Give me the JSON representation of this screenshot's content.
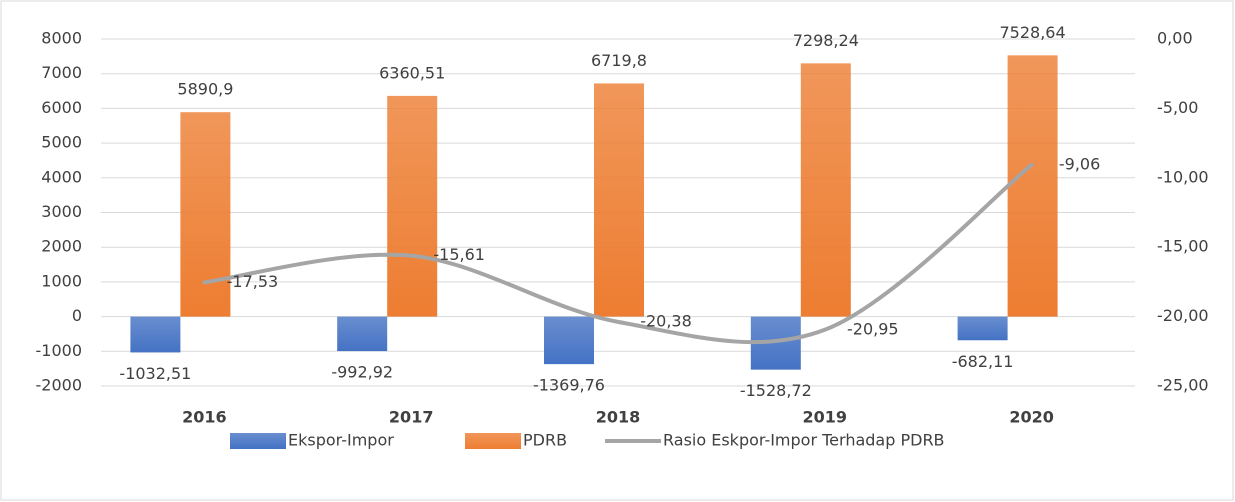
{
  "chart_data": {
    "type": "bar-line",
    "categories": [
      "2016",
      "2017",
      "2018",
      "2019",
      "2020"
    ],
    "series": [
      {
        "name": "Ekspor-Impor",
        "type": "bar",
        "color": "#4472c4",
        "values": [
          -1032.51,
          -992.92,
          -1369.76,
          -1528.72,
          -682.11
        ],
        "value_labels": [
          "-1032,51",
          "-992,92",
          "-1369,76",
          "-1528,72",
          "-682,11"
        ]
      },
      {
        "name": "PDRB",
        "type": "bar",
        "color": "#ed7d31",
        "values": [
          5890.9,
          6360.51,
          6719.8,
          7298.24,
          7528.64
        ],
        "value_labels": [
          "5890,9",
          "6360,51",
          "6719,8",
          "7298,24",
          "7528,64"
        ]
      },
      {
        "name": "Rasio Eskpor-Impor Terhadap PDRB",
        "type": "line",
        "axis": "y2",
        "color": "#a5a5a5",
        "values": [
          -17.53,
          -15.61,
          -20.38,
          -20.95,
          -9.06
        ],
        "value_labels": [
          "-17,53",
          "-15,61",
          "-20,38",
          "-20,95",
          "-9,06"
        ]
      }
    ],
    "ylim": [
      -2000,
      8000
    ],
    "yticks": [
      -2000,
      -1000,
      0,
      1000,
      2000,
      3000,
      4000,
      5000,
      6000,
      7000,
      8000
    ],
    "y2lim": [
      -25,
      0
    ],
    "y2ticks": [
      {
        "value": -25,
        "label": "-25,00"
      },
      {
        "value": -20,
        "label": "-20,00"
      },
      {
        "value": -15,
        "label": "-15,00"
      },
      {
        "value": -10,
        "label": "-10,00"
      },
      {
        "value": -5,
        "label": "-5,00"
      },
      {
        "value": 0,
        "label": "0,00"
      }
    ],
    "grid": true,
    "legend": "bottom"
  }
}
